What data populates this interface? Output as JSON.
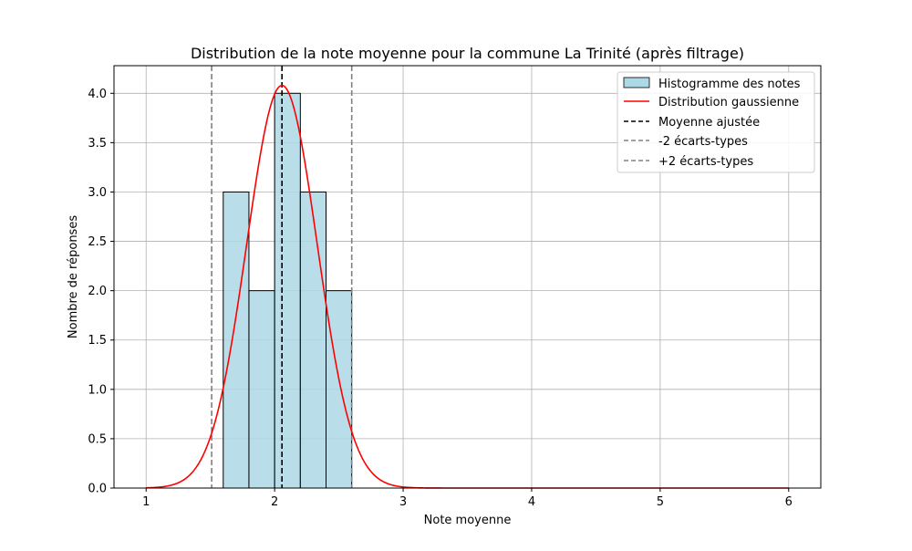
{
  "chart_data": {
    "type": "bar",
    "title": "Distribution de la note moyenne pour la commune La Trinité (après filtrage)",
    "xlabel": "Note moyenne",
    "ylabel": "Nombre de réponses",
    "xlim": [
      0.75,
      6.25
    ],
    "ylim": [
      0,
      4.28
    ],
    "grid": true,
    "legend_position": "top-right",
    "x_ticks": [
      1,
      2,
      3,
      4,
      5,
      6
    ],
    "y_ticks": [
      0.0,
      0.5,
      1.0,
      1.5,
      2.0,
      2.5,
      3.0,
      3.5,
      4.0
    ],
    "histogram": {
      "name": "Histogramme des notes",
      "color": "#add8e6",
      "edge_color": "#000000",
      "bins": [
        {
          "x0": 1.6,
          "x1": 1.8,
          "count": 3
        },
        {
          "x0": 1.8,
          "x1": 2.0,
          "count": 2
        },
        {
          "x0": 2.0,
          "x1": 2.2,
          "count": 4
        },
        {
          "x0": 2.2,
          "x1": 2.4,
          "count": 3
        },
        {
          "x0": 2.4,
          "x1": 2.6,
          "count": 2
        }
      ]
    },
    "gaussian": {
      "name": "Distribution gaussienne",
      "color": "#ff0000",
      "mean": 2.057,
      "std": 0.274,
      "peak": 4.08,
      "x_range": [
        1,
        6
      ]
    },
    "vlines": [
      {
        "name": "Moyenne ajustée",
        "x": 2.057,
        "color": "#000000",
        "style": "dashed"
      },
      {
        "name": "-2 écarts-types",
        "x": 1.51,
        "color": "#808080",
        "style": "dashed"
      },
      {
        "name": "+2 écarts-types",
        "x": 2.6,
        "color": "#808080",
        "style": "dashed"
      }
    ]
  }
}
